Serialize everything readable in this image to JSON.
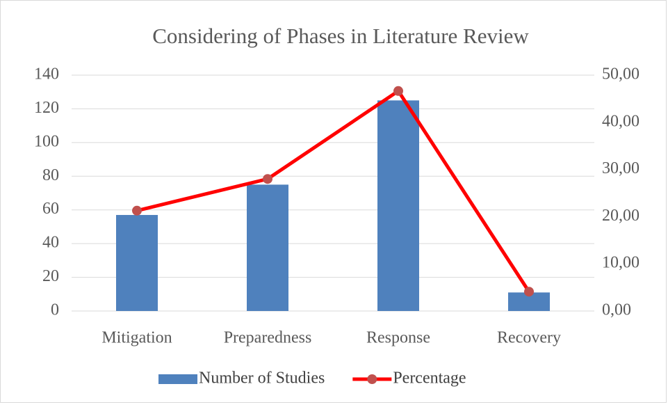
{
  "chart_data": {
    "type": "bar",
    "title": "Considering of Phases in Literature Review",
    "categories": [
      "Mitigation",
      "Preparedness",
      "Response",
      "Recovery"
    ],
    "series": [
      {
        "name": "Number of Studies",
        "type": "bar",
        "color": "#4f81bd",
        "values": [
          57,
          75,
          125,
          11
        ]
      },
      {
        "name": "Percentage",
        "type": "line",
        "axis": "y2",
        "color": "#ff0000",
        "marker_color": "#c0504d",
        "values": [
          21.27,
          27.99,
          46.64,
          4.1
        ]
      }
    ],
    "ylim": [
      0,
      140
    ],
    "yticks": [
      0,
      20,
      40,
      60,
      80,
      100,
      120,
      140
    ],
    "y2lim": [
      0,
      50
    ],
    "y2ticks": [
      {
        "value": 0,
        "label": "0,00"
      },
      {
        "value": 10,
        "label": "10,00"
      },
      {
        "value": 20,
        "label": "20,00"
      },
      {
        "value": 30,
        "label": "30,00"
      },
      {
        "value": 40,
        "label": "40,00"
      },
      {
        "value": 50,
        "label": "50,00"
      }
    ],
    "grid": true,
    "legend": "bottom"
  }
}
